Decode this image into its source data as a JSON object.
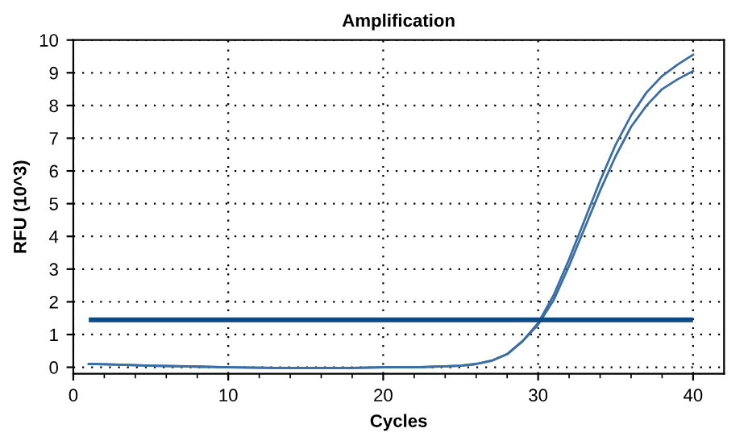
{
  "chart_data": {
    "type": "line",
    "title": "Amplification",
    "xlabel": "Cycles",
    "ylabel": "RFU (10^3)",
    "x": [
      1,
      3,
      5,
      8,
      10,
      13,
      15,
      18,
      20,
      22,
      24,
      25,
      26,
      27,
      28,
      29,
      30,
      31,
      32,
      33,
      34,
      35,
      36,
      37,
      38,
      39,
      40
    ],
    "series": [
      {
        "color": "#3a6ea5",
        "values": [
          0.1,
          0.08,
          0.05,
          0.02,
          0.0,
          -0.02,
          -0.02,
          -0.02,
          0.0,
          0.0,
          0.03,
          0.05,
          0.1,
          0.2,
          0.4,
          0.8,
          1.35,
          2.2,
          3.3,
          4.5,
          5.7,
          6.8,
          7.7,
          8.4,
          8.9,
          9.25,
          9.55
        ]
      },
      {
        "color": "#3a6ea5",
        "values": [
          0.1,
          0.08,
          0.05,
          0.02,
          0.0,
          -0.02,
          -0.02,
          -0.02,
          0.0,
          0.0,
          0.03,
          0.05,
          0.1,
          0.2,
          0.4,
          0.8,
          1.3,
          2.05,
          3.1,
          4.25,
          5.4,
          6.45,
          7.35,
          8.0,
          8.5,
          8.8,
          9.05
        ]
      }
    ],
    "ref_lines": [
      {
        "axis": "y",
        "value": 1.45,
        "color": "#0b4a82"
      }
    ],
    "xlim": [
      0,
      42
    ],
    "ylim": [
      -0.2,
      10
    ],
    "xticks": [
      0,
      {
        "value": 2,
        "label": null
      },
      {
        "value": 4,
        "label": null
      },
      {
        "value": 6,
        "label": null
      },
      {
        "value": 8,
        "label": null
      },
      10,
      {
        "value": 12,
        "label": null
      },
      {
        "value": 14,
        "label": null
      },
      {
        "value": 16,
        "label": null
      },
      {
        "value": 18,
        "label": null
      },
      20,
      {
        "value": 22,
        "label": null
      },
      {
        "value": 24,
        "label": null
      },
      {
        "value": 26,
        "label": null
      },
      {
        "value": 28,
        "label": null
      },
      30,
      {
        "value": 32,
        "label": null
      },
      {
        "value": 34,
        "label": null
      },
      {
        "value": 36,
        "label": null
      },
      {
        "value": 38,
        "label": null
      },
      40
    ],
    "yticks": [
      0,
      1,
      2,
      3,
      4,
      5,
      6,
      7,
      8,
      9,
      10
    ],
    "grid": true,
    "legend": false,
    "marker": "none",
    "line_style": "solid"
  }
}
